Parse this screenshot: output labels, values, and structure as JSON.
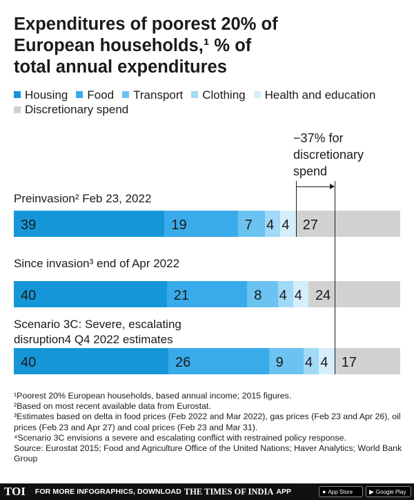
{
  "chart_data": {
    "type": "bar",
    "orientation": "horizontal-stacked",
    "title_lines": [
      "Expenditures of poorest 20% of",
      "European households,¹ % of",
      "total annual expenditures"
    ],
    "series": [
      {
        "name": "Housing",
        "color": "#1596d8"
      },
      {
        "name": "Food",
        "color": "#3aabea"
      },
      {
        "name": "Transport",
        "color": "#6cc2f1"
      },
      {
        "name": "Clothing",
        "color": "#a1d9f6"
      },
      {
        "name": "Health and education",
        "color": "#d5eefb"
      },
      {
        "name": "Discretionary spend",
        "color": "#d1d1d1"
      }
    ],
    "categories": [
      "Preinvasion² Feb 23, 2022",
      "Since invasion³ end of Apr 2022",
      "Scenario 3C: Severe, escalating disruption4 Q4 2022 estimates"
    ],
    "category_label_lines": [
      [
        "Preinvasion² Feb 23, 2022"
      ],
      [
        "Since invasion³ end of Apr 2022"
      ],
      [
        "Scenario 3C: Severe, escalating",
        "disruption4 Q4 2022 estimates"
      ]
    ],
    "values": [
      [
        39,
        19,
        7,
        4,
        4,
        27
      ],
      [
        40,
        21,
        8,
        4,
        4,
        24
      ],
      [
        40,
        26,
        9,
        4,
        4,
        17
      ]
    ],
    "annotation_lines": [
      "−37% for",
      "discretionary",
      "spend"
    ],
    "xlim": [
      0,
      100
    ]
  },
  "footnotes": [
    "¹Poorest 20% European households, based annual income; 2015 figures.",
    "²Based on most recent available data from Eurostat.",
    "³Estimates based on delta in food prices (Feb 2022 and Mar 2022), gas prices (Feb 23 and Apr 26), oil prices (Feb 23 and Apr 27) and coal prices (Feb 23 and Mar 31).",
    "⁴Scenario 3C envisions a severe and escalating conflict with restrained policy response.",
    "Source: Eurostat 2015; Food and Agriculture Office of the United Nations; Haver Analytics; World Bank Group"
  ],
  "footer": {
    "logo": "TOI",
    "text": "FOR MORE INFOGRAPHICS, DOWNLOAD",
    "brand": "THE TIMES OF INDIA",
    "app": "APP",
    "app_store": "App Store",
    "google_play": "Google Play"
  }
}
